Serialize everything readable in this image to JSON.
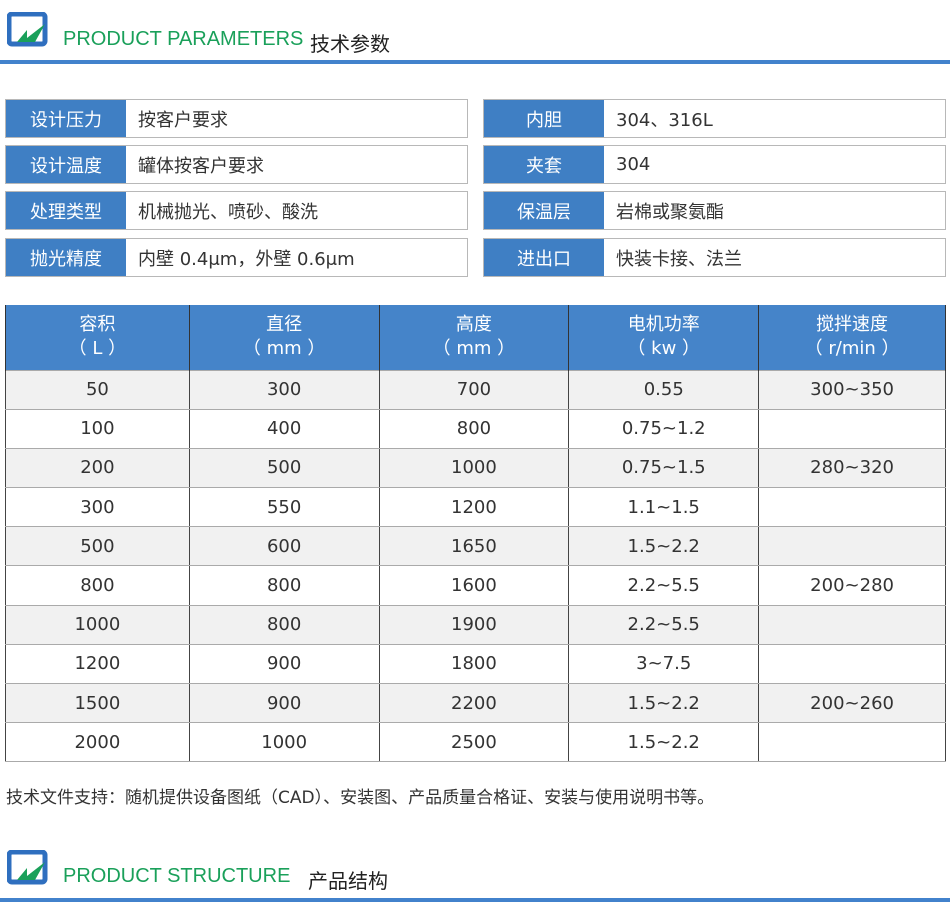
{
  "section1": {
    "title_en": "PRODUCT PARAMETERS",
    "title_cn": "技术参数"
  },
  "specs_left": [
    {
      "k": "设计压力",
      "v": "按客户要求"
    },
    {
      "k": "设计温度",
      "v": "罐体按客户要求"
    },
    {
      "k": "处理类型",
      "v": "机械抛光、喷砂、酸洗"
    },
    {
      "k": "抛光精度",
      "v": "内壁 0.4μm，外壁 0.6μm"
    }
  ],
  "specs_right": [
    {
      "k": "内胆",
      "v": "304、316L"
    },
    {
      "k": "夹套",
      "v": "304"
    },
    {
      "k": "保温层",
      "v": "岩棉或聚氨酯"
    },
    {
      "k": "进出口",
      "v": "快装卡接、法兰"
    }
  ],
  "table": {
    "headers": [
      [
        "容积",
        "（ L ）"
      ],
      [
        "直径",
        "（ mm ）"
      ],
      [
        "高度",
        "（ mm ）"
      ],
      [
        "电机功率",
        "（ kw ）"
      ],
      [
        "搅拌速度",
        "（ r/min ）"
      ]
    ],
    "rows": [
      [
        "50",
        "300",
        "700",
        "0.55",
        "300~350"
      ],
      [
        "100",
        "400",
        "800",
        "0.75~1.2",
        ""
      ],
      [
        "200",
        "500",
        "1000",
        "0.75~1.5",
        "280~320"
      ],
      [
        "300",
        "550",
        "1200",
        "1.1~1.5",
        ""
      ],
      [
        "500",
        "600",
        "1650",
        "1.5~2.2",
        ""
      ],
      [
        "800",
        "800",
        "1600",
        "2.2~5.5",
        "200~280"
      ],
      [
        "1000",
        "800",
        "1900",
        "2.2~5.5",
        ""
      ],
      [
        "1200",
        "900",
        "1800",
        "3~7.5",
        ""
      ],
      [
        "1500",
        "900",
        "2200",
        "1.5~2.2",
        "200~260"
      ],
      [
        "2000",
        "1000",
        "2500",
        "1.5~2.2",
        ""
      ]
    ]
  },
  "note": "技术文件支持：随机提供设备图纸（CAD）、安装图、产品质量合格证、安装与使用说明书等。",
  "section2": {
    "title_en": "PRODUCT STRUCTURE",
    "title_cn": "产品结构"
  },
  "colors": {
    "accent": "#4282cc",
    "green": "#1aa05a"
  }
}
